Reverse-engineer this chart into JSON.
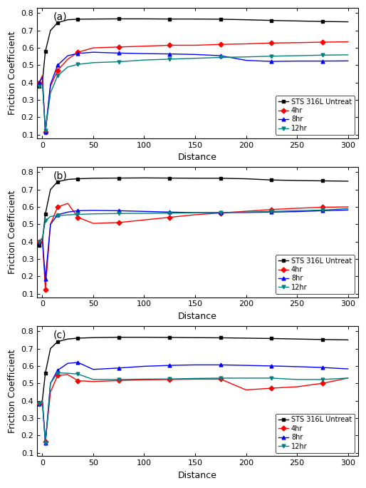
{
  "panels": [
    "(a)",
    "(b)",
    "(c)"
  ],
  "xlabel": "Distance",
  "ylabel": "Friction Coefficient",
  "xlim": [
    -5,
    310
  ],
  "ylim": [
    0.08,
    0.83
  ],
  "yticks": [
    0.1,
    0.2,
    0.3,
    0.4,
    0.5,
    0.6,
    0.7,
    0.8
  ],
  "xticks": [
    0,
    50,
    100,
    150,
    200,
    250,
    300
  ],
  "legend_labels": [
    "STS 316L Untreat",
    "4hr",
    "8hr",
    "12hr"
  ],
  "colors": [
    "black",
    "red",
    "blue",
    "#008080"
  ],
  "markers": [
    "s",
    "D",
    "^",
    "v"
  ],
  "panel_a": {
    "untreat_x": [
      -3,
      0,
      3,
      8,
      15,
      25,
      35,
      50,
      75,
      100,
      125,
      150,
      175,
      200,
      225,
      250,
      275,
      300
    ],
    "untreat_y": [
      0.38,
      0.4,
      0.58,
      0.7,
      0.745,
      0.762,
      0.765,
      0.766,
      0.767,
      0.767,
      0.766,
      0.766,
      0.765,
      0.762,
      0.758,
      0.755,
      0.752,
      0.75
    ],
    "hr4_x": [
      -3,
      0,
      3,
      8,
      15,
      25,
      35,
      50,
      75,
      100,
      125,
      150,
      175,
      200,
      225,
      250,
      275,
      300
    ],
    "hr4_y": [
      0.4,
      0.44,
      0.115,
      0.38,
      0.47,
      0.535,
      0.575,
      0.6,
      0.605,
      0.61,
      0.615,
      0.615,
      0.62,
      0.623,
      0.628,
      0.63,
      0.633,
      0.635
    ],
    "hr8_x": [
      -3,
      0,
      3,
      8,
      15,
      25,
      35,
      50,
      75,
      100,
      125,
      150,
      175,
      200,
      225,
      250,
      275,
      300
    ],
    "hr8_y": [
      0.4,
      0.43,
      0.115,
      0.39,
      0.5,
      0.555,
      0.568,
      0.575,
      0.57,
      0.567,
      0.565,
      0.562,
      0.555,
      0.528,
      0.522,
      0.524,
      0.524,
      0.525
    ],
    "hr12_x": [
      -3,
      0,
      3,
      8,
      15,
      25,
      35,
      50,
      75,
      100,
      125,
      150,
      175,
      200,
      225,
      250,
      275,
      300
    ],
    "hr12_y": [
      0.38,
      0.4,
      0.125,
      0.34,
      0.44,
      0.49,
      0.505,
      0.515,
      0.52,
      0.53,
      0.535,
      0.54,
      0.545,
      0.548,
      0.552,
      0.555,
      0.558,
      0.56
    ]
  },
  "panel_b": {
    "untreat_x": [
      -3,
      0,
      3,
      8,
      15,
      25,
      35,
      50,
      75,
      100,
      125,
      150,
      175,
      200,
      225,
      250,
      275,
      300
    ],
    "untreat_y": [
      0.38,
      0.4,
      0.56,
      0.7,
      0.745,
      0.758,
      0.762,
      0.765,
      0.766,
      0.767,
      0.766,
      0.765,
      0.765,
      0.762,
      0.755,
      0.752,
      0.75,
      0.748
    ],
    "hr4_x": [
      -3,
      0,
      3,
      8,
      15,
      25,
      35,
      50,
      75,
      100,
      125,
      150,
      175,
      200,
      225,
      250,
      275,
      300
    ],
    "hr4_y": [
      0.4,
      0.42,
      0.125,
      0.5,
      0.6,
      0.62,
      0.54,
      0.505,
      0.51,
      0.525,
      0.54,
      0.555,
      0.565,
      0.575,
      0.585,
      0.592,
      0.598,
      0.6
    ],
    "hr8_x": [
      -3,
      0,
      3,
      8,
      15,
      25,
      35,
      50,
      75,
      100,
      125,
      150,
      175,
      200,
      225,
      250,
      275,
      300
    ],
    "hr8_y": [
      0.4,
      0.42,
      0.185,
      0.5,
      0.555,
      0.57,
      0.578,
      0.58,
      0.578,
      0.574,
      0.57,
      0.567,
      0.567,
      0.568,
      0.57,
      0.573,
      0.578,
      0.582
    ],
    "hr12_x": [
      -3,
      0,
      3,
      8,
      15,
      25,
      35,
      50,
      75,
      100,
      125,
      150,
      175,
      200,
      225,
      250,
      275,
      300
    ],
    "hr12_y": [
      0.4,
      0.42,
      0.52,
      0.545,
      0.55,
      0.554,
      0.557,
      0.56,
      0.562,
      0.563,
      0.564,
      0.566,
      0.568,
      0.57,
      0.574,
      0.578,
      0.582,
      0.59
    ]
  },
  "panel_c": {
    "untreat_x": [
      -3,
      0,
      3,
      8,
      15,
      25,
      35,
      50,
      75,
      100,
      125,
      150,
      175,
      200,
      225,
      250,
      275,
      300
    ],
    "untreat_y": [
      0.38,
      0.4,
      0.56,
      0.7,
      0.74,
      0.755,
      0.76,
      0.763,
      0.765,
      0.765,
      0.764,
      0.763,
      0.762,
      0.76,
      0.758,
      0.755,
      0.752,
      0.75
    ],
    "hr4_x": [
      -3,
      0,
      3,
      8,
      15,
      25,
      35,
      50,
      75,
      100,
      125,
      150,
      175,
      200,
      225,
      250,
      275,
      300
    ],
    "hr4_y": [
      0.38,
      0.4,
      0.165,
      0.45,
      0.545,
      0.55,
      0.515,
      0.51,
      0.516,
      0.52,
      0.522,
      0.524,
      0.524,
      0.462,
      0.472,
      0.48,
      0.5,
      0.53
    ],
    "hr8_x": [
      -3,
      0,
      3,
      8,
      15,
      25,
      35,
      50,
      75,
      100,
      125,
      150,
      175,
      200,
      225,
      250,
      275,
      300
    ],
    "hr8_y": [
      0.38,
      0.4,
      0.155,
      0.5,
      0.575,
      0.615,
      0.62,
      0.58,
      0.588,
      0.598,
      0.603,
      0.606,
      0.606,
      0.603,
      0.6,
      0.596,
      0.591,
      0.583
    ],
    "hr12_x": [
      -3,
      0,
      3,
      8,
      15,
      25,
      35,
      50,
      75,
      100,
      125,
      150,
      175,
      200,
      225,
      250,
      275,
      300
    ],
    "hr12_y": [
      0.38,
      0.4,
      0.155,
      0.5,
      0.56,
      0.558,
      0.553,
      0.522,
      0.522,
      0.524,
      0.525,
      0.528,
      0.53,
      0.53,
      0.53,
      0.522,
      0.522,
      0.53
    ]
  },
  "background_color": "#ffffff",
  "panel_bg": "#ffffff",
  "legend_fontsize": 7,
  "axis_label_fontsize": 9,
  "tick_fontsize": 8,
  "panel_label_fontsize": 10,
  "linewidth": 1.0,
  "markersize": 3.5
}
